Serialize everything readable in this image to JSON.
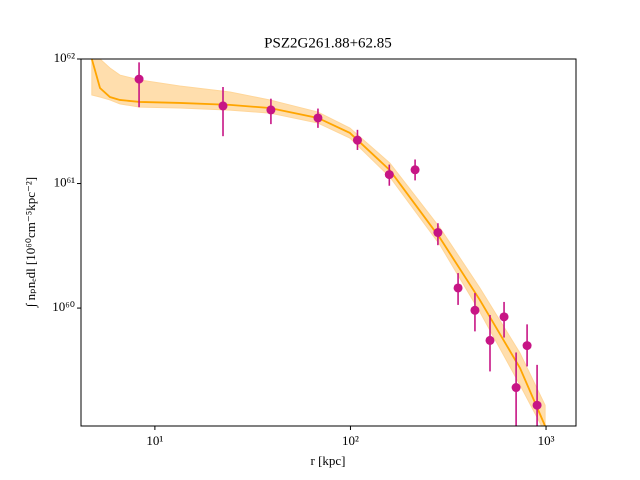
{
  "chart_data": {
    "type": "scatter",
    "title": "PSZ2G261.88+62.85",
    "xlabel": "r [kpc]",
    "ylabel": "∫ nₚnₑdl [10⁶⁰cm⁻⁵kpc⁻²]",
    "xscale": "log",
    "yscale": "log",
    "xlim": [
      4.19,
      1423
    ],
    "ylim": [
      1.13e+59,
      1e+62
    ],
    "xticks": [
      {
        "value": 10,
        "label": "10¹"
      },
      {
        "value": 100,
        "label": "10²"
      },
      {
        "value": 1000,
        "label": "10³"
      }
    ],
    "yticks": [
      {
        "value": 1e+60,
        "label": "10⁶⁰"
      },
      {
        "value": 1e+61,
        "label": "10⁶¹"
      },
      {
        "value": 1e+62,
        "label": "10⁶²"
      }
    ],
    "model": {
      "color": "#ffa500",
      "band_color": "#ffd699",
      "x": [
        4.76,
        5.24,
        5.89,
        6.62,
        8.38,
        13.4,
        24.2,
        38.7,
        68.2,
        99.3,
        159,
        287,
        459,
        736,
        989
      ],
      "values": [
        1e+62,
        5.85e+61,
        4.95e+61,
        4.69e+61,
        4.52e+61,
        4.44e+61,
        4.28e+61,
        4.04e+61,
        3.36e+61,
        2.55e+61,
        1.28e+61,
        3.65e+60,
        1.16e+60,
        3.3e+59,
        1.13e+59
      ],
      "upper": [
        1e+62,
        1e+62,
        8.47e+61,
        7.43e+61,
        6.78e+61,
        6.07e+61,
        5.43e+61,
        4.69e+61,
        3.75e+61,
        2.79e+61,
        1.46e+61,
        4.4e+60,
        1.45e+60,
        4.35e+59,
        1.66e+59
      ],
      "lower": [
        5.14e+61,
        4.95e+61,
        4.69e+61,
        4.36e+61,
        4.11e+61,
        4.04e+61,
        3.89e+61,
        3.68e+61,
        3.06e+61,
        2.32e+61,
        1.13e+61,
        3.21e+60,
        9.3e+59,
        2.41e+59,
        1e+59
      ]
    },
    "points": {
      "color": "#c71585",
      "x": [
        8.3,
        22.3,
        39.2,
        68.2,
        108.6,
        158,
        214,
        280,
        355,
        433,
        517,
        610,
        703,
        800,
        900
      ],
      "values": [
        6.9e+61,
        4.2e+61,
        3.9e+61,
        3.36e+61,
        2.23e+61,
        1.18e+61,
        1.29e+61,
        4.04e+60,
        1.45e+60,
        9.6e+59,
        5.5e+59,
        8.5e+59,
        2.3e+59,
        5e+59,
        1.66e+59
      ],
      "upper": [
        9.4e+61,
        5.96e+61,
        4.8e+61,
        4e+61,
        2.7e+61,
        1.42e+61,
        1.56e+61,
        4.8e+60,
        1.91e+60,
        1.32e+60,
        8.8e+59,
        1.12e+60,
        4.4e+59,
        7.4e+59,
        3.5e+59
      ],
      "lower": [
        4.1e+61,
        2.4e+61,
        3e+61,
        2.8e+61,
        1.86e+61,
        9.6e+60,
        1.06e+61,
        3.2e+60,
        1.06e+60,
        6.5e+59,
        3.1e+59,
        5.8e+59,
        1.13e+59,
        3.4e+59,
        1e+59
      ]
    }
  }
}
